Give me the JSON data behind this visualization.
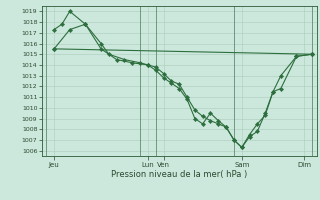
{
  "bg_color": "#cce8dc",
  "grid_color": "#aaccba",
  "line_color": "#2d6e3e",
  "marker_color": "#2d6e3e",
  "xlabel_text": "Pression niveau de la mer( hPa )",
  "ylim": [
    1005.5,
    1019.5
  ],
  "yticks": [
    1006,
    1007,
    1008,
    1009,
    1010,
    1011,
    1012,
    1013,
    1014,
    1015,
    1016,
    1017,
    1018,
    1019
  ],
  "xlim": [
    -0.3,
    17.3
  ],
  "xtick_labels": [
    "Jeu",
    "Lun",
    "Ven",
    "Sam",
    "Dim"
  ],
  "xtick_positions": [
    0.5,
    6.5,
    7.5,
    12.5,
    16.5
  ],
  "vlines": [
    0,
    6,
    7,
    12,
    17
  ],
  "series1": {
    "x": [
      0.5,
      17.0
    ],
    "y": [
      1015.5,
      1015.0
    ]
  },
  "series2": {
    "x": [
      0.5,
      1.0,
      1.5,
      2.5,
      3.5,
      4.0,
      5.0,
      6.0,
      6.5,
      7.0,
      7.5,
      8.0,
      8.5,
      9.0,
      9.5,
      10.0,
      10.5,
      11.0,
      11.5,
      12.0,
      12.5,
      13.0,
      13.5,
      14.0,
      14.5,
      15.0,
      16.0,
      17.0
    ],
    "y": [
      1017.3,
      1017.8,
      1019.0,
      1017.8,
      1016.0,
      1015.0,
      1014.5,
      1014.2,
      1014.0,
      1013.5,
      1012.8,
      1012.3,
      1011.8,
      1010.8,
      1009.0,
      1008.5,
      1009.5,
      1008.8,
      1008.2,
      1007.0,
      1006.3,
      1007.3,
      1007.8,
      1009.5,
      1011.5,
      1013.0,
      1014.8,
      1015.0
    ]
  },
  "series3": {
    "x": [
      0.5,
      1.5,
      2.5,
      3.5,
      4.5,
      5.5,
      6.5,
      7.0,
      7.5,
      8.0,
      8.5,
      9.0,
      9.5,
      10.0,
      10.5,
      11.0,
      11.5,
      12.0,
      12.5,
      13.0,
      13.5,
      14.0,
      14.5,
      15.0,
      16.0,
      17.0
    ],
    "y": [
      1015.5,
      1017.3,
      1017.8,
      1015.5,
      1014.5,
      1014.2,
      1014.0,
      1013.8,
      1013.2,
      1012.5,
      1012.2,
      1011.0,
      1009.8,
      1009.2,
      1008.8,
      1008.5,
      1008.2,
      1007.0,
      1006.3,
      1007.5,
      1008.5,
      1009.3,
      1011.5,
      1011.8,
      1014.8,
      1015.0
    ]
  }
}
